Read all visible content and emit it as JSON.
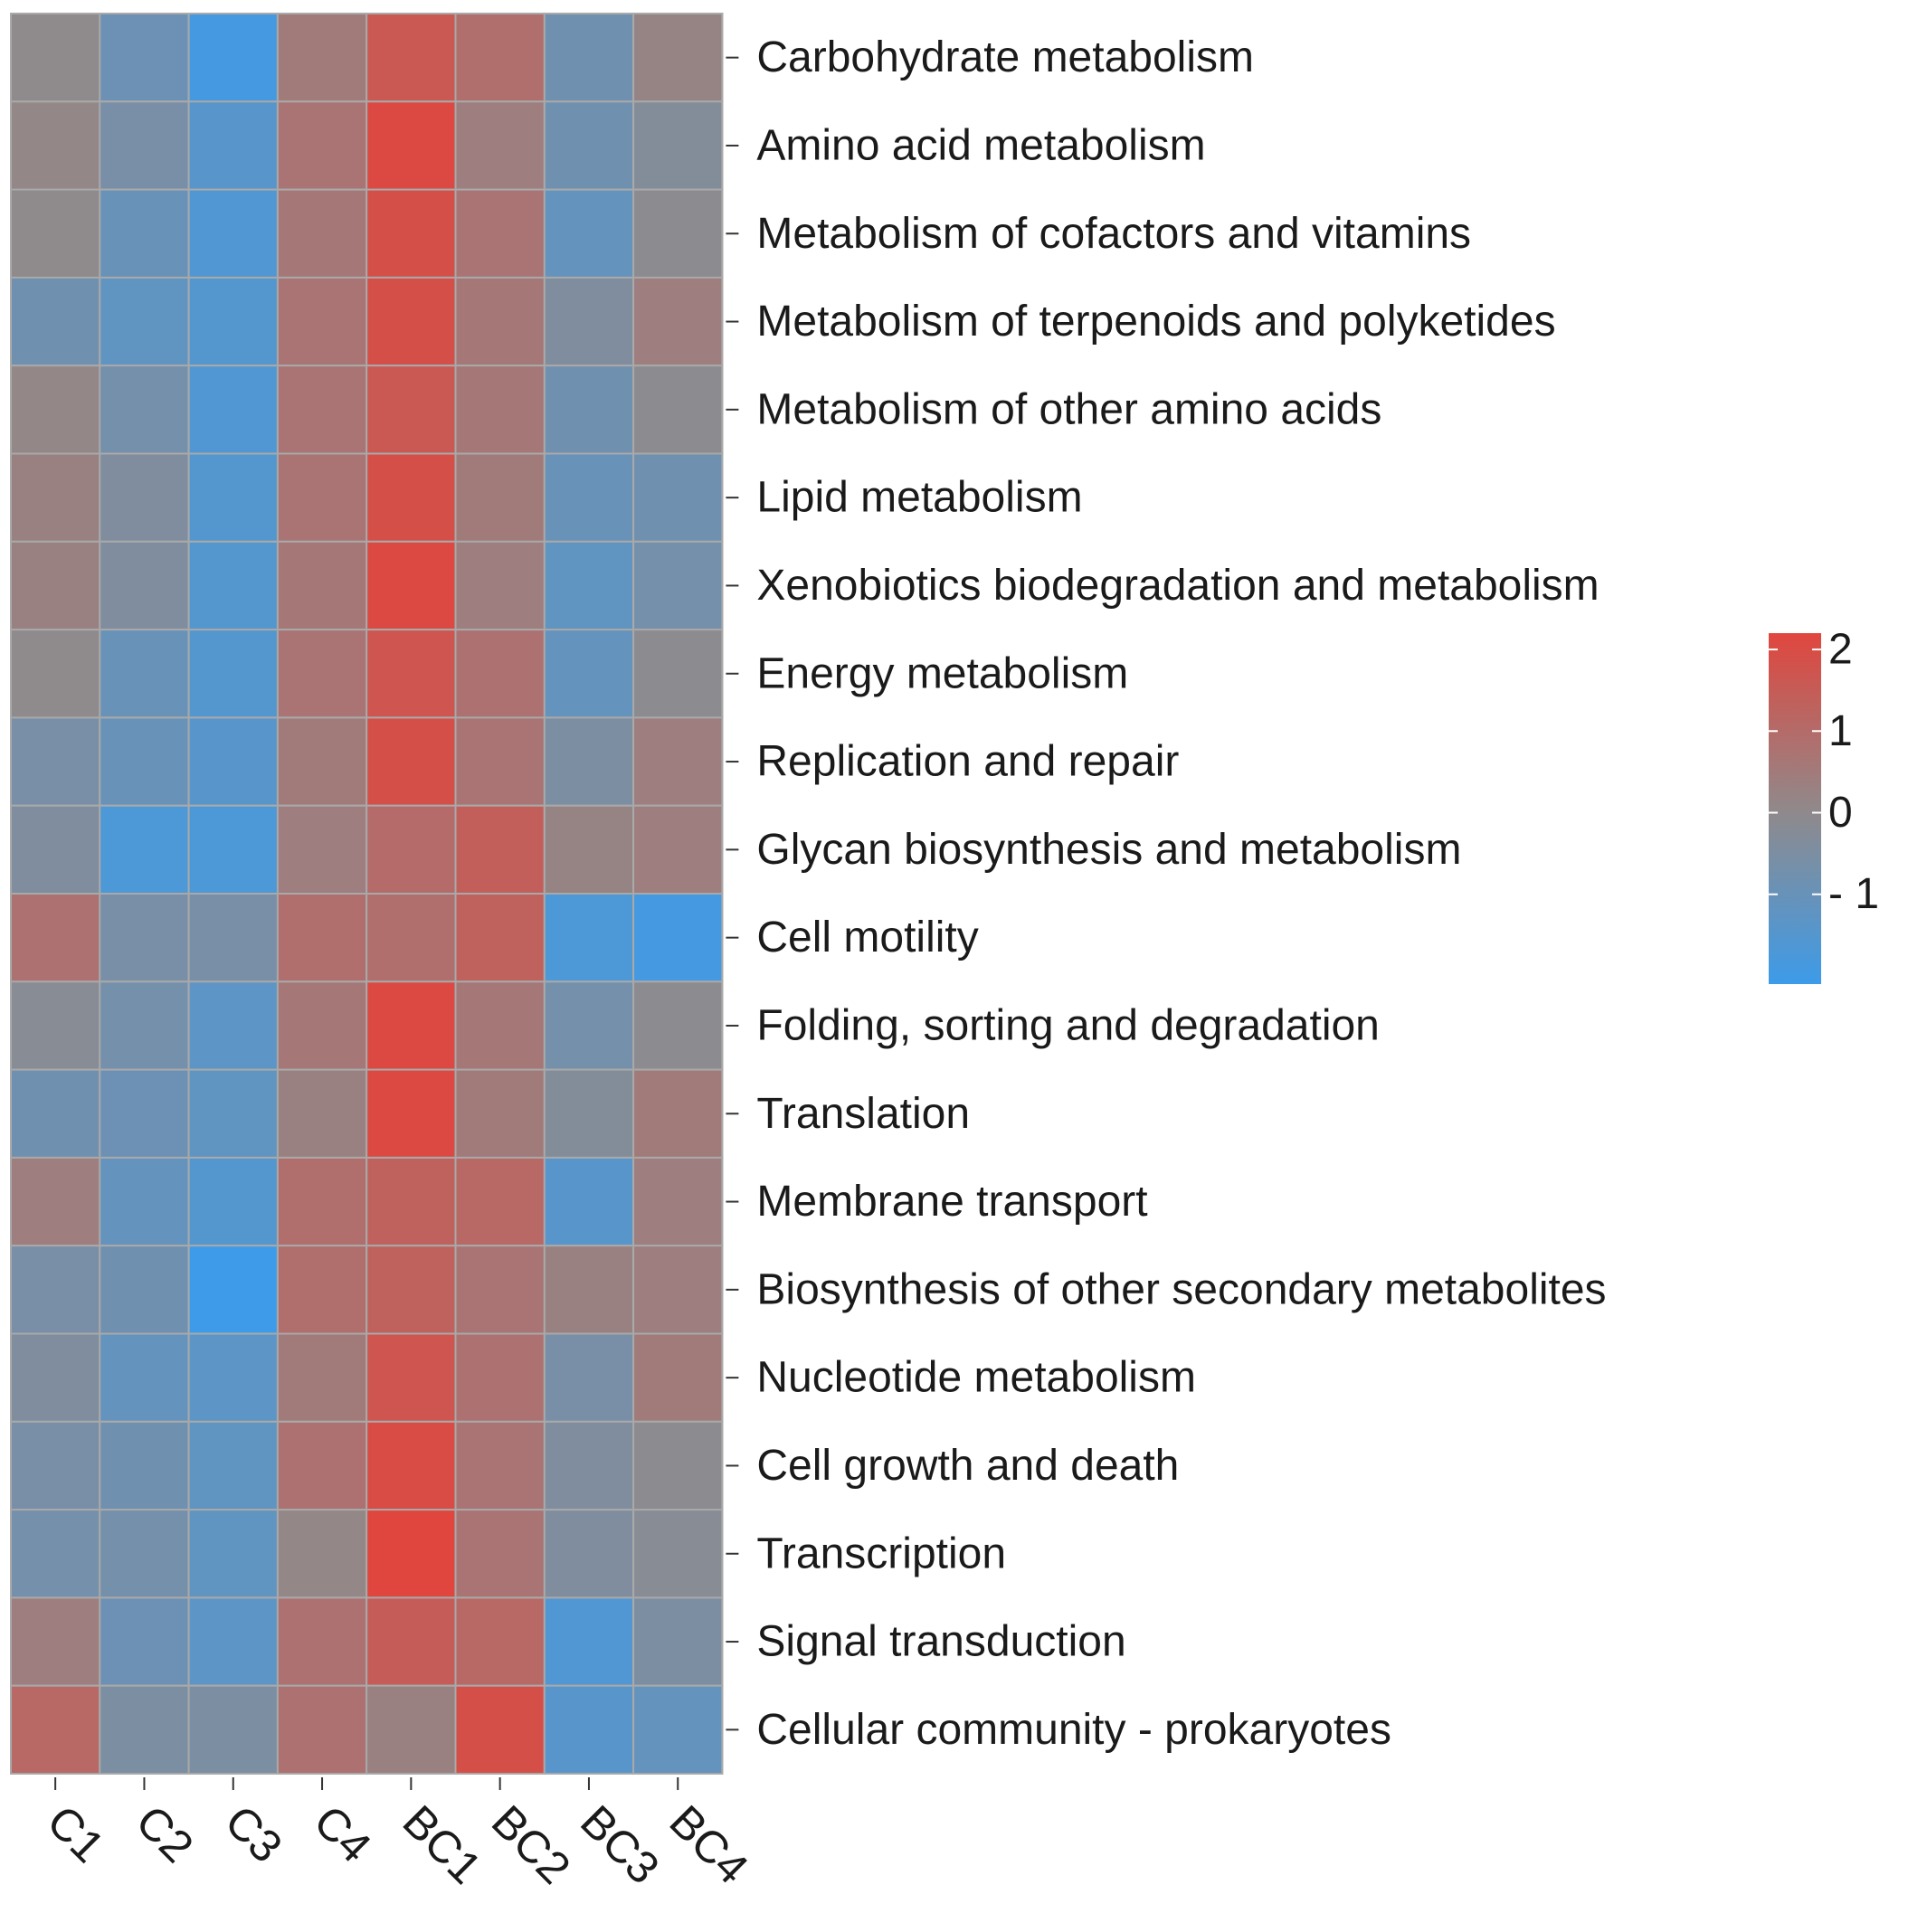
{
  "chart_data": {
    "type": "heatmap",
    "title": "",
    "xlabel": "",
    "ylabel": "",
    "columns": [
      "C1",
      "C2",
      "C3",
      "C4",
      "BC1",
      "BC2",
      "BC3",
      "BC4"
    ],
    "rows": [
      "Carbohydrate metabolism",
      "Amino acid metabolism",
      "Metabolism of cofactors and vitamins",
      "Metabolism of terpenoids and polyketides",
      "Metabolism of other amino acids",
      "Lipid metabolism",
      "Xenobiotics biodegradation and metabolism",
      "Energy metabolism",
      "Replication and repair",
      "Glycan biosynthesis and metabolism",
      "Cell motility",
      "Folding, sorting and degradation",
      "Translation",
      "Membrane transport",
      "Biosynthesis of other secondary metabolites",
      "Nucleotide metabolism",
      "Cell growth and death",
      "Transcription",
      "Signal transduction",
      "Cellular community - prokaryotes"
    ],
    "values": [
      [
        0.0,
        -0.9,
        -1.9,
        0.5,
        1.6,
        0.9,
        -0.8,
        0.2
      ],
      [
        0.1,
        -0.6,
        -1.4,
        0.7,
        2.1,
        0.4,
        -0.8,
        -0.3
      ],
      [
        0.0,
        -1.0,
        -1.6,
        0.6,
        1.9,
        0.7,
        -1.1,
        -0.1
      ],
      [
        -0.8,
        -1.2,
        -1.5,
        0.7,
        1.9,
        0.6,
        -0.4,
        0.4
      ],
      [
        0.1,
        -0.7,
        -1.6,
        0.7,
        1.6,
        0.6,
        -0.8,
        -0.1
      ],
      [
        0.3,
        -0.4,
        -1.5,
        0.7,
        1.9,
        0.5,
        -1.0,
        -0.8
      ],
      [
        0.3,
        -0.4,
        -1.5,
        0.6,
        2.1,
        0.4,
        -1.2,
        -0.7
      ],
      [
        0.0,
        -1.0,
        -1.5,
        0.7,
        1.7,
        0.8,
        -1.1,
        -0.1
      ],
      [
        -0.6,
        -1.0,
        -1.4,
        0.5,
        1.9,
        0.7,
        -0.5,
        0.4
      ],
      [
        -0.4,
        -1.7,
        -1.7,
        0.4,
        1.0,
        1.4,
        0.2,
        0.4
      ],
      [
        0.8,
        -0.6,
        -0.6,
        0.9,
        0.9,
        1.3,
        -1.7,
        -1.9
      ],
      [
        -0.2,
        -0.7,
        -1.3,
        0.6,
        2.1,
        0.6,
        -0.7,
        -0.1
      ],
      [
        -0.8,
        -0.9,
        -1.2,
        0.3,
        2.1,
        0.5,
        -0.3,
        0.5
      ],
      [
        0.4,
        -1.1,
        -1.5,
        0.9,
        1.3,
        1.1,
        -1.4,
        0.4
      ],
      [
        -0.6,
        -0.8,
        -2.1,
        0.9,
        1.3,
        0.7,
        0.3,
        0.4
      ],
      [
        -0.4,
        -1.1,
        -1.3,
        0.5,
        1.7,
        0.8,
        -0.6,
        0.5
      ],
      [
        -0.6,
        -0.8,
        -1.2,
        0.8,
        2.0,
        0.7,
        -0.4,
        -0.1
      ],
      [
        -0.7,
        -0.7,
        -1.2,
        0.1,
        2.2,
        0.7,
        -0.4,
        -0.2
      ],
      [
        0.4,
        -0.9,
        -1.3,
        0.8,
        1.5,
        1.1,
        -1.6,
        -0.5
      ],
      [
        1.1,
        -0.5,
        -0.5,
        0.8,
        0.3,
        1.9,
        -1.4,
        -1.1
      ]
    ],
    "colorscale": {
      "low_color": "#3d9be9",
      "mid_color": "#8f8a8c",
      "high_color": "#e0463e",
      "min": -2.1,
      "mid": 0,
      "max": 2.2
    },
    "legend": {
      "position": "right",
      "ticks": [
        {
          "value": 2,
          "label": "2"
        },
        {
          "value": 1,
          "label": "1"
        },
        {
          "value": 0,
          "label": "0"
        },
        {
          "value": -1,
          "label": "- 1"
        }
      ]
    }
  }
}
